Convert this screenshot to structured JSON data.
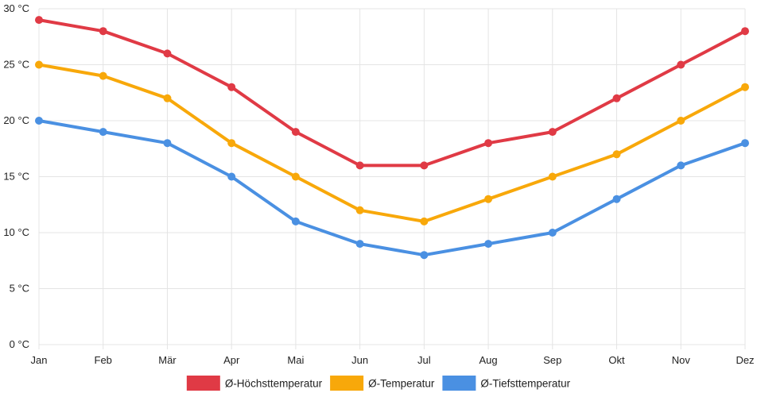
{
  "chart_data": {
    "type": "line",
    "categories": [
      "Jan",
      "Feb",
      "Mär",
      "Apr",
      "Mai",
      "Jun",
      "Jul",
      "Aug",
      "Sep",
      "Okt",
      "Nov",
      "Dez"
    ],
    "y_ticks": [
      "0 °C",
      "5 °C",
      "10 °C",
      "15 °C",
      "20 °C",
      "25 °C",
      "30 °C"
    ],
    "ylim": [
      0,
      30
    ],
    "y_step": 5,
    "grid": true,
    "legend_position": "bottom",
    "series": [
      {
        "name": "Ø-Höchsttemperatur",
        "color": "#e03a45",
        "values": [
          29,
          28,
          26,
          23,
          19,
          16,
          16,
          18,
          19,
          22,
          25,
          28
        ]
      },
      {
        "name": "Ø-Temperatur",
        "color": "#f8a80a",
        "values": [
          25,
          24,
          22,
          18,
          15,
          12,
          11,
          13,
          15,
          17,
          20,
          23
        ]
      },
      {
        "name": "Ø-Tiefsttemperatur",
        "color": "#4a90e2",
        "values": [
          20,
          19,
          18,
          15,
          11,
          9,
          8,
          9,
          10,
          13,
          16,
          18
        ]
      }
    ]
  }
}
